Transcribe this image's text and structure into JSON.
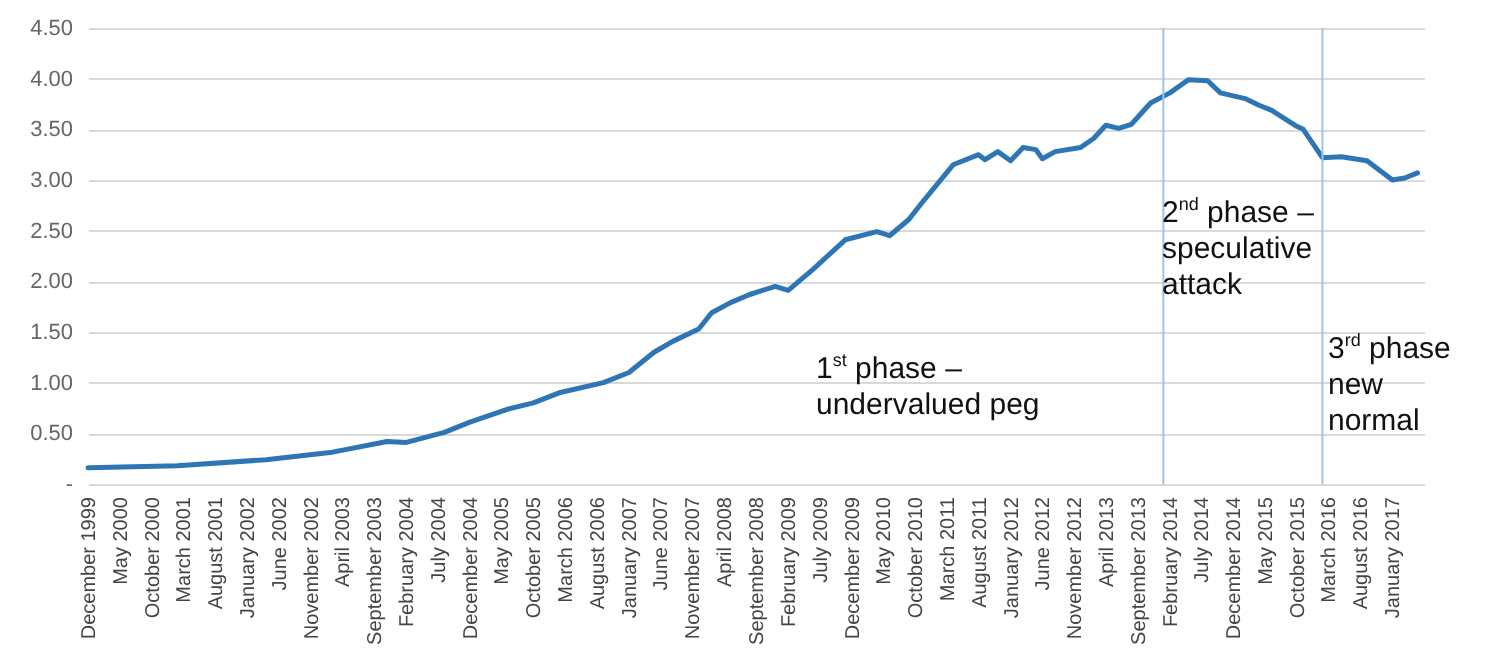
{
  "chart_data": {
    "type": "line",
    "grid": "y",
    "marker": "none",
    "line_style": "solid",
    "x": [
      "1999-12",
      "2001-02",
      "2002-04",
      "2003-02",
      "2003-11",
      "2004-02",
      "2004-08",
      "2004-12",
      "2005-06",
      "2005-10",
      "2006-02",
      "2006-09",
      "2007-01",
      "2007-05",
      "2007-08",
      "2007-12",
      "2008-02",
      "2008-05",
      "2008-08",
      "2008-10",
      "2008-12",
      "2009-02",
      "2009-06",
      "2009-11",
      "2010-04",
      "2010-06",
      "2010-09",
      "2010-11",
      "2011-04",
      "2011-08",
      "2011-09",
      "2011-11",
      "2012-01",
      "2012-03",
      "2012-05",
      "2012-06",
      "2012-08",
      "2012-12",
      "2013-02",
      "2013-04",
      "2013-06",
      "2013-08",
      "2013-11",
      "2014-02",
      "2014-05",
      "2014-08",
      "2014-10",
      "2015-02",
      "2015-04",
      "2015-06",
      "2015-10",
      "2015-11",
      "2016-02",
      "2016-05",
      "2016-09",
      "2017-01",
      "2017-03",
      "2017-05"
    ],
    "series": [
      {
        "color": "#2e75b6",
        "values": [
          0.16,
          0.18,
          0.24,
          0.31,
          0.42,
          0.41,
          0.51,
          0.61,
          0.74,
          0.8,
          0.9,
          1.0,
          1.1,
          1.3,
          1.41,
          1.53,
          1.69,
          1.79,
          1.87,
          1.91,
          1.95,
          1.91,
          2.12,
          2.41,
          2.49,
          2.45,
          2.61,
          2.77,
          3.15,
          3.25,
          3.2,
          3.28,
          3.19,
          3.32,
          3.3,
          3.21,
          3.28,
          3.32,
          3.41,
          3.54,
          3.51,
          3.55,
          3.76,
          3.86,
          3.99,
          3.98,
          3.86,
          3.8,
          3.74,
          3.69,
          3.53,
          3.5,
          3.22,
          3.23,
          3.19,
          3.0,
          3.02,
          3.07
        ]
      }
    ],
    "xlim": [
      "1999-12",
      "2017-06"
    ],
    "xticks": [
      {
        "value": "1999-12",
        "label": "December 1999"
      },
      {
        "value": "2000-05",
        "label": "May 2000"
      },
      {
        "value": "2000-10",
        "label": "October 2000"
      },
      {
        "value": "2001-03",
        "label": "March 2001"
      },
      {
        "value": "2001-08",
        "label": "August 2001"
      },
      {
        "value": "2002-01",
        "label": "January 2002"
      },
      {
        "value": "2002-06",
        "label": "June 2002"
      },
      {
        "value": "2002-11",
        "label": "November 2002"
      },
      {
        "value": "2003-04",
        "label": "April 2003"
      },
      {
        "value": "2003-09",
        "label": "September 2003"
      },
      {
        "value": "2004-02",
        "label": "February 2004"
      },
      {
        "value": "2004-07",
        "label": "July 2004"
      },
      {
        "value": "2004-12",
        "label": "December 2004"
      },
      {
        "value": "2005-05",
        "label": "May 2005"
      },
      {
        "value": "2005-10",
        "label": "October 2005"
      },
      {
        "value": "2006-03",
        "label": "March 2006"
      },
      {
        "value": "2006-08",
        "label": "August 2006"
      },
      {
        "value": "2007-01",
        "label": "January 2007"
      },
      {
        "value": "2007-06",
        "label": "June 2007"
      },
      {
        "value": "2007-11",
        "label": "November 2007"
      },
      {
        "value": "2008-04",
        "label": "April 2008"
      },
      {
        "value": "2008-09",
        "label": "September 2008"
      },
      {
        "value": "2009-02",
        "label": "February 2009"
      },
      {
        "value": "2009-07",
        "label": "July 2009"
      },
      {
        "value": "2009-12",
        "label": "December 2009"
      },
      {
        "value": "2010-05",
        "label": "May 2010"
      },
      {
        "value": "2010-10",
        "label": "October 2010"
      },
      {
        "value": "2011-03",
        "label": "March 2011"
      },
      {
        "value": "2011-08",
        "label": "August 2011"
      },
      {
        "value": "2012-01",
        "label": "January 2012"
      },
      {
        "value": "2012-06",
        "label": "June 2012"
      },
      {
        "value": "2012-11",
        "label": "November 2012"
      },
      {
        "value": "2013-04",
        "label": "April 2013"
      },
      {
        "value": "2013-09",
        "label": "September 2013"
      },
      {
        "value": "2014-02",
        "label": "February 2014"
      },
      {
        "value": "2014-07",
        "label": "July 2014"
      },
      {
        "value": "2014-12",
        "label": "December 2014"
      },
      {
        "value": "2015-05",
        "label": "May 2015"
      },
      {
        "value": "2015-10",
        "label": "October 2015"
      },
      {
        "value": "2016-03",
        "label": "March 2016"
      },
      {
        "value": "2016-08",
        "label": "August 2016"
      },
      {
        "value": "2017-01",
        "label": "January 2017"
      }
    ],
    "ylim": [
      0,
      4.5
    ],
    "yticks": [
      {
        "value": 0,
        "label": "-"
      },
      {
        "value": 0.5,
        "label": "0.50"
      },
      {
        "value": 1,
        "label": "1.00"
      },
      {
        "value": 1.5,
        "label": "1.50"
      },
      {
        "value": 2,
        "label": "2.00"
      },
      {
        "value": 2.5,
        "label": "2.50"
      },
      {
        "value": 3,
        "label": "3.00"
      },
      {
        "value": 3.5,
        "label": "3.50"
      },
      {
        "value": 4,
        "label": "4.00"
      },
      {
        "value": 4.5,
        "label": "4.50"
      }
    ],
    "ref_lines": [
      {
        "axis": "x",
        "value": "2014-01",
        "color": "#9dc3e6"
      },
      {
        "axis": "x",
        "value": "2016-02",
        "color": "#9dc3e6"
      }
    ],
    "annotations": [
      "1$^{st}$ phase –\nundervalued peg",
      "2$^{nd}$ phase –\nspeculative\nattack",
      "3$^{rd}$ phase\nnew\nnormal"
    ]
  }
}
